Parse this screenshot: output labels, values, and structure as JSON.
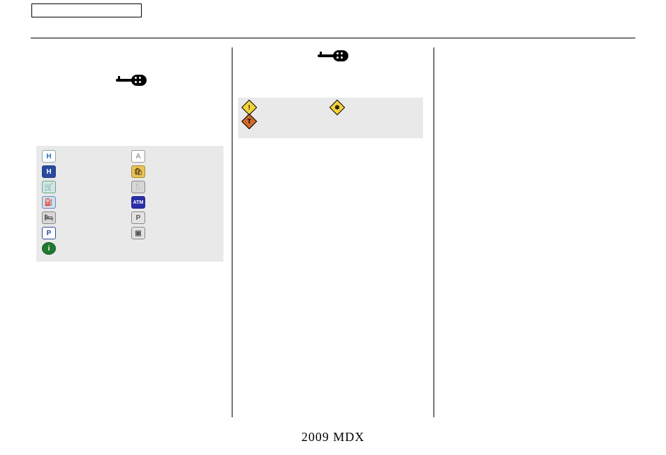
{
  "footer": {
    "text": "2009  MDX"
  },
  "col1": {
    "icon_grid": {
      "bg_color": "#e9e9e9",
      "rows": [
        {
          "left": {
            "name": "honda-icon",
            "label": "",
            "bg": "#ffffff",
            "fg": "#1e6fc0",
            "glyph": "H",
            "border": "#8aa"
          },
          "right": {
            "name": "acura-icon",
            "label": "",
            "bg": "#ffffff",
            "fg": "#9a9a9a",
            "glyph": "A",
            "border": "#999"
          }
        },
        {
          "left": {
            "name": "hospital-icon",
            "label": "",
            "bg": "#2a4aa0",
            "fg": "#ffffff",
            "glyph": "H",
            "border": "#23407f"
          },
          "right": {
            "name": "shopping-icon",
            "label": "",
            "bg": "#e7c25a",
            "fg": "#6b4a12",
            "glyph": "🛍",
            "border": "#b08a2a"
          }
        },
        {
          "left": {
            "name": "grocery-icon",
            "label": "",
            "bg": "#cfe7df",
            "fg": "#2f6f5a",
            "glyph": "🛒",
            "border": "#6fa090"
          },
          "right": {
            "name": "restaurant-icon",
            "label": "",
            "bg": "#d7d7d7",
            "fg": "#555555",
            "glyph": "🍴",
            "border": "#888"
          }
        },
        {
          "left": {
            "name": "gas-station-icon",
            "label": "",
            "bg": "#cfe0ef",
            "fg": "#2a4aa0",
            "glyph": "⛽",
            "border": "#6a88b8"
          },
          "right": {
            "name": "atm-icon",
            "label": "",
            "bg": "#2a2fa8",
            "fg": "#ffffff",
            "glyph": "ATM",
            "border": "#22268a",
            "small": true
          }
        },
        {
          "left": {
            "name": "lodging-icon",
            "label": "",
            "bg": "#d7d7d7",
            "fg": "#555555",
            "glyph": "🛏",
            "border": "#888"
          },
          "right": {
            "name": "parking-p-icon",
            "label": "",
            "bg": "#e2e2e2",
            "fg": "#555555",
            "glyph": "P",
            "border": "#888"
          }
        },
        {
          "left": {
            "name": "parking-icon",
            "label": "",
            "bg": "#ffffff",
            "fg": "#2a4aa0",
            "glyph": "P",
            "border": "#2a4aa0"
          },
          "right": {
            "name": "rest-area-icon",
            "label": "",
            "bg": "#e2e2e2",
            "fg": "#555555",
            "glyph": "▣",
            "border": "#888"
          }
        },
        {
          "left": {
            "name": "info-icon",
            "label": "",
            "bg": "#1f7a2f",
            "fg": "#ffffff",
            "glyph": "i",
            "border": "#155a22",
            "round": true
          },
          "right": null
        }
      ]
    }
  },
  "col2": {
    "traffic_box": {
      "bg_color": "#e9e9e9",
      "rows": [
        {
          "left": {
            "name": "incident-diamond-icon",
            "label": "",
            "bg": "#f2d23c",
            "fg": "#000000",
            "glyph": "!",
            "shape": "diamond",
            "border": "#000"
          },
          "right": {
            "name": "weather-diamond-icon",
            "label": "",
            "bg": "#f2d23c",
            "fg": "#000000",
            "glyph": "❄",
            "shape": "diamond",
            "border": "#000"
          }
        },
        {
          "left": {
            "name": "construction-diamond-icon",
            "label": "",
            "bg": "#cc6a2a",
            "fg": "#000000",
            "glyph": "T",
            "shape": "diamond",
            "border": "#000"
          },
          "right": null
        }
      ]
    }
  }
}
